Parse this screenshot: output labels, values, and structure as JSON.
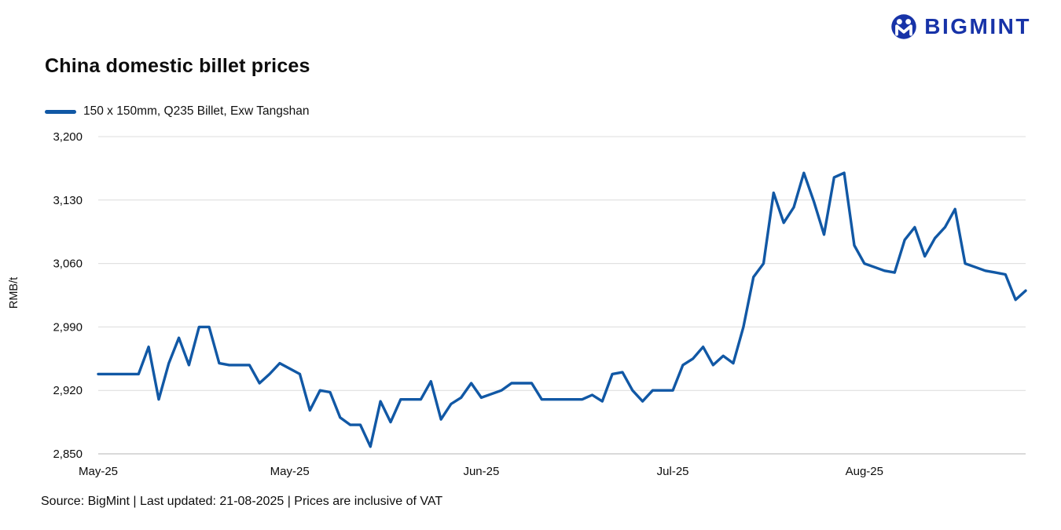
{
  "logo": {
    "text": "BIGMINT",
    "color": "#1733a8"
  },
  "chart_data": {
    "type": "line",
    "title": "China domestic billet prices",
    "ylabel": "RMB/t",
    "xlabel": "",
    "ylim": [
      2850,
      3200
    ],
    "yticks": [
      2850,
      2920,
      2990,
      3060,
      3130,
      3200
    ],
    "grid": "horizontal",
    "legend_position": "top-left",
    "line_color": "#1158a5",
    "series": [
      {
        "name": "150 x 150mm, Q235 Billet, Exw Tangshan",
        "color": "#1158a5",
        "values": [
          2938,
          2938,
          2938,
          2938,
          2938,
          2968,
          2910,
          2950,
          2978,
          2948,
          2990,
          2990,
          2950,
          2948,
          2948,
          2948,
          2928,
          2938,
          2950,
          2944,
          2938,
          2898,
          2920,
          2918,
          2890,
          2882,
          2882,
          2858,
          2908,
          2885,
          2910,
          2910,
          2910,
          2930,
          2888,
          2905,
          2912,
          2928,
          2912,
          2916,
          2920,
          2928,
          2928,
          2928,
          2910,
          2910,
          2910,
          2910,
          2910,
          2915,
          2908,
          2938,
          2940,
          2920,
          2908,
          2920,
          2920,
          2920,
          2948,
          2955,
          2968,
          2948,
          2958,
          2950,
          2990,
          3045,
          3060,
          3138,
          3105,
          3122,
          3160,
          3128,
          3092,
          3155,
          3160,
          3080,
          3060,
          3056,
          3052,
          3050,
          3086,
          3100,
          3068,
          3088,
          3100,
          3120,
          3060,
          3056,
          3052,
          3050,
          3048,
          3020,
          3030
        ]
      }
    ],
    "x_ticks": [
      {
        "label": "May-25",
        "index": 0
      },
      {
        "label": "May-25",
        "index": 19
      },
      {
        "label": "Jun-25",
        "index": 38
      },
      {
        "label": "Jul-25",
        "index": 57
      },
      {
        "label": "Aug-25",
        "index": 76
      }
    ]
  },
  "footer": {
    "source_note": "Source: BigMint | Last updated: 21-08-2025 | Prices are inclusive of VAT"
  }
}
